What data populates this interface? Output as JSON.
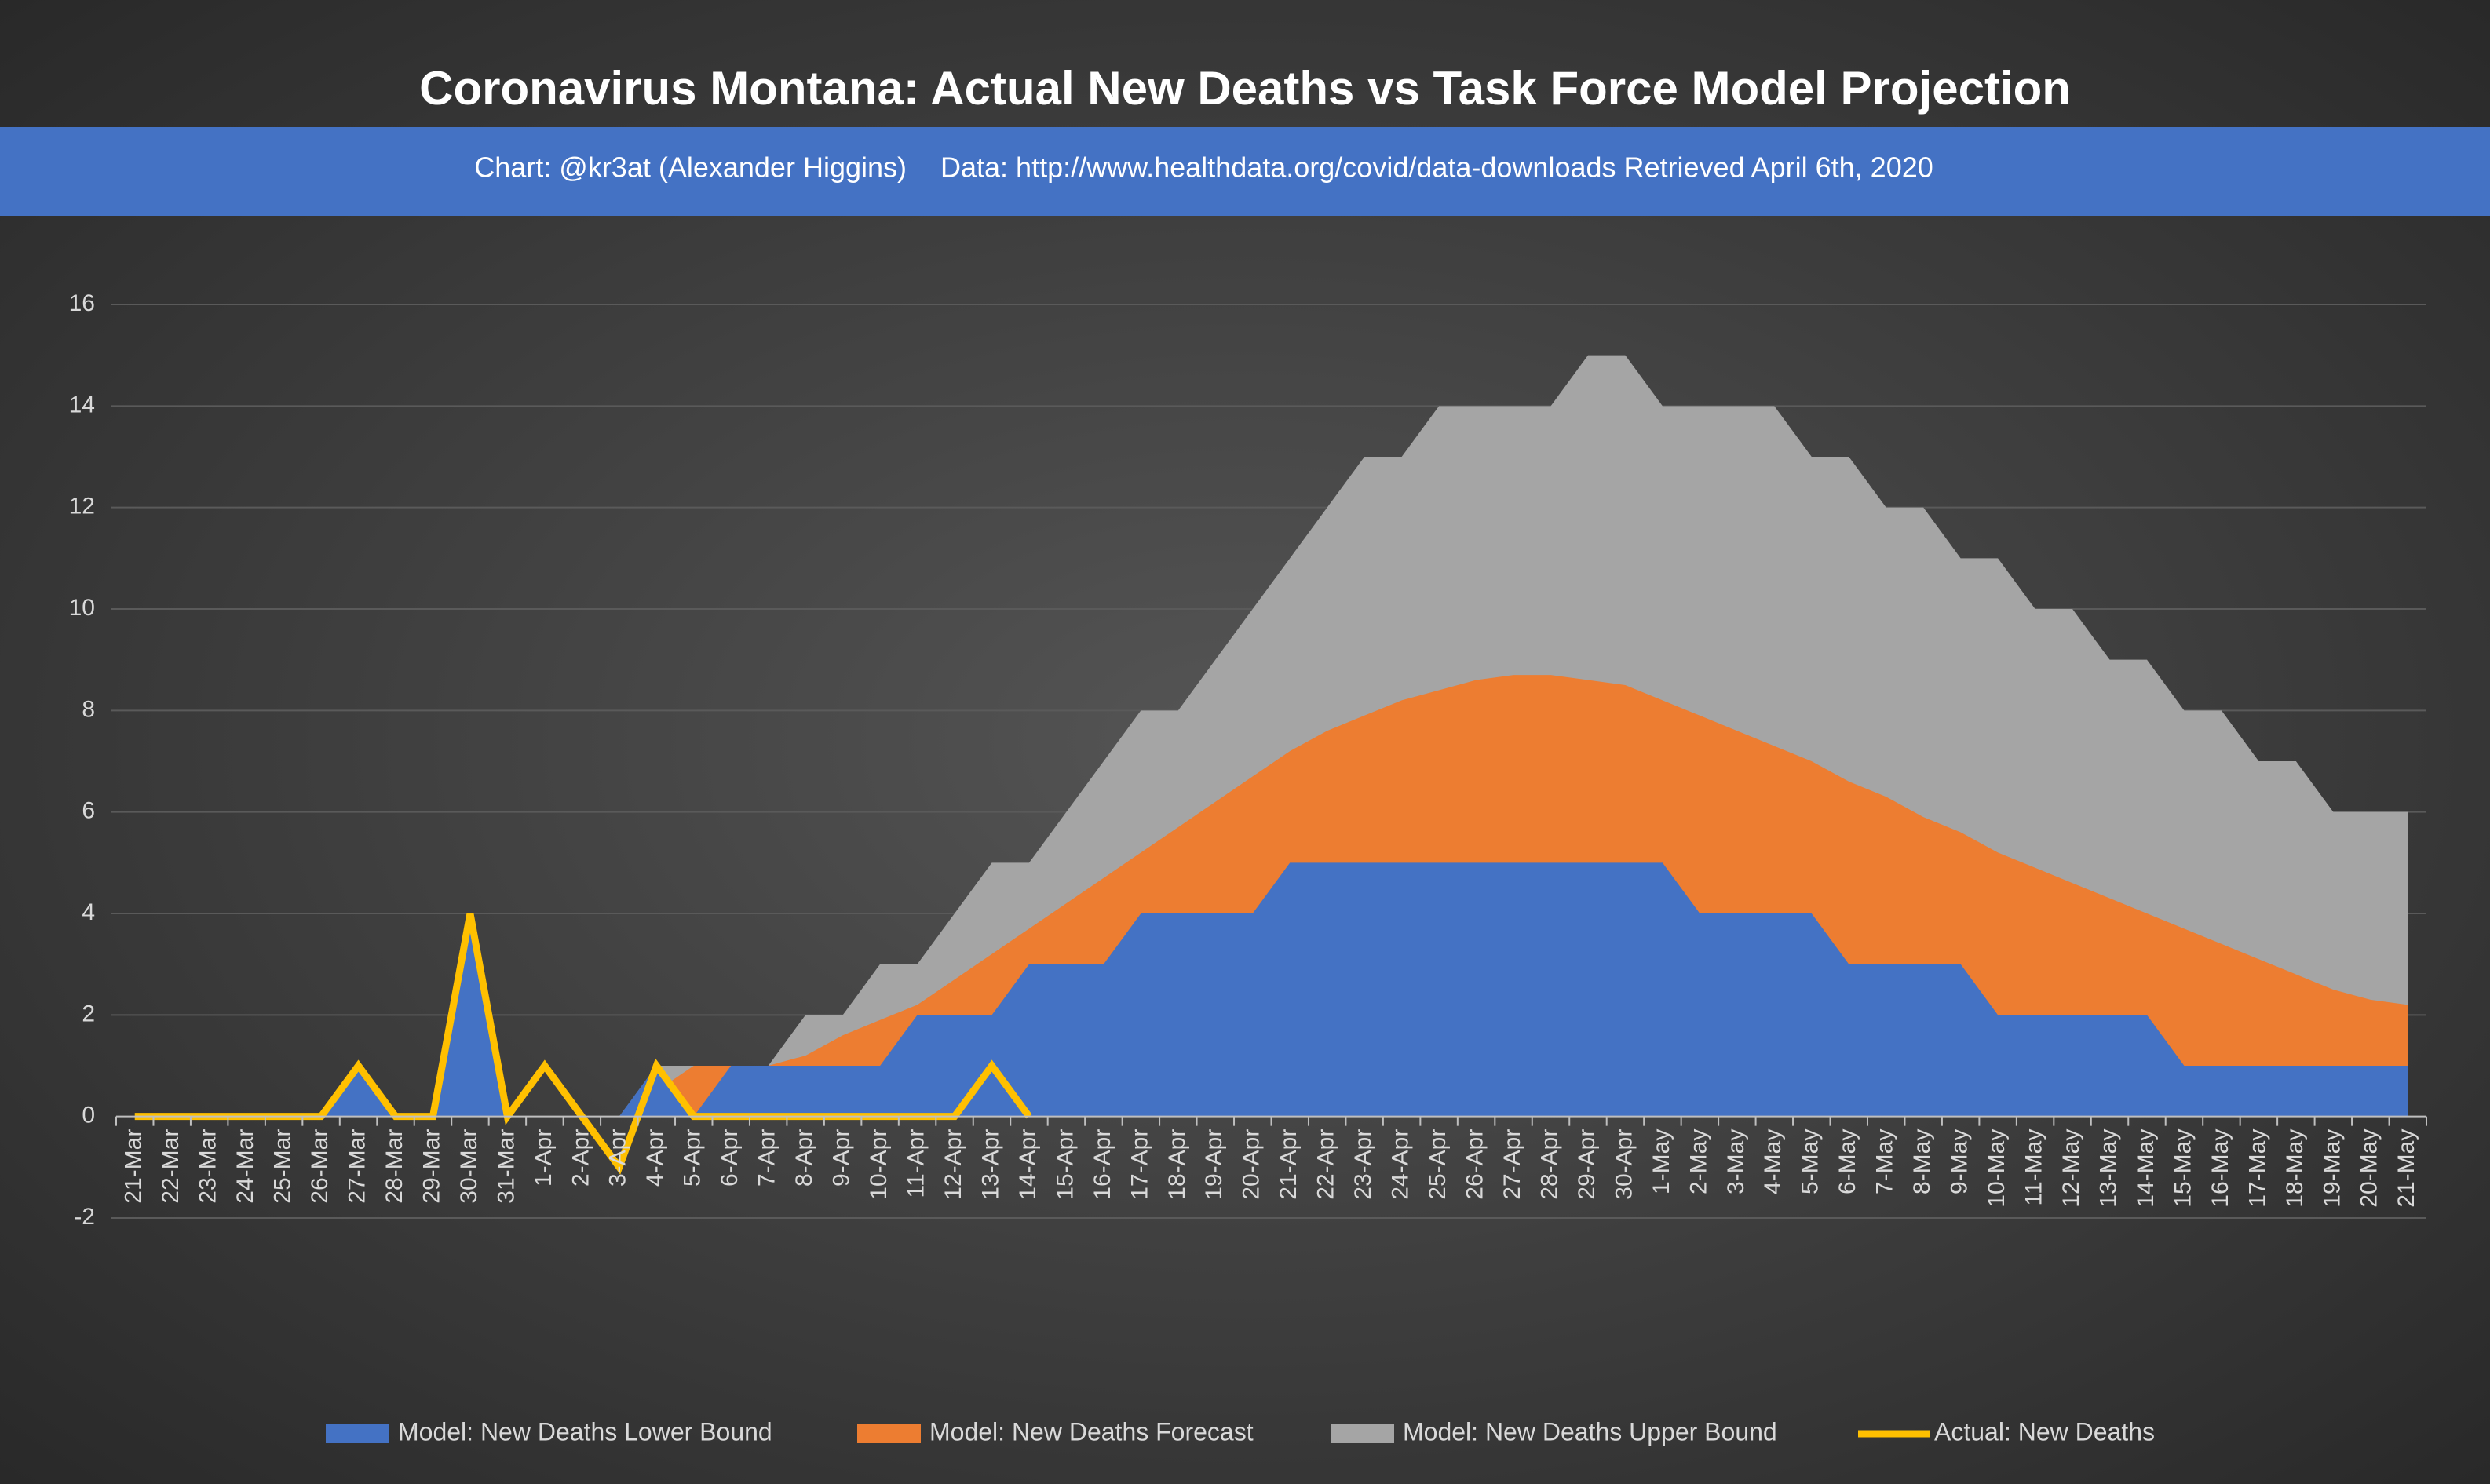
{
  "chart_data": {
    "type": "area",
    "title": "Coronavirus Montana: Actual New Deaths vs Task Force Model Projection",
    "subtitle": "Chart: @kr3at (Alexander Higgins)",
    "source": "Data: http://www.healthdata.org/covid/data-downloads Retrieved April 6th, 2020",
    "categories": [
      "21-Mar",
      "22-Mar",
      "23-Mar",
      "24-Mar",
      "25-Mar",
      "26-Mar",
      "27-Mar",
      "28-Mar",
      "29-Mar",
      "30-Mar",
      "31-Mar",
      "1-Apr",
      "2-Apr",
      "3-Apr",
      "4-Apr",
      "5-Apr",
      "6-Apr",
      "7-Apr",
      "8-Apr",
      "9-Apr",
      "10-Apr",
      "11-Apr",
      "12-Apr",
      "13-Apr",
      "14-Apr",
      "15-Apr",
      "16-Apr",
      "17-Apr",
      "18-Apr",
      "19-Apr",
      "20-Apr",
      "21-Apr",
      "22-Apr",
      "23-Apr",
      "24-Apr",
      "25-Apr",
      "26-Apr",
      "27-Apr",
      "28-Apr",
      "29-Apr",
      "30-Apr",
      "1-May",
      "2-May",
      "3-May",
      "4-May",
      "5-May",
      "6-May",
      "7-May",
      "8-May",
      "9-May",
      "10-May",
      "11-May",
      "12-May",
      "13-May",
      "14-May",
      "15-May",
      "16-May",
      "17-May",
      "18-May",
      "19-May",
      "20-May",
      "21-May"
    ],
    "series": [
      {
        "name": "Model: New Deaths Lower Bound",
        "color": "#4472c4",
        "kind": "area",
        "values": [
          0,
          0,
          0,
          0,
          0,
          0,
          1,
          0,
          0,
          4,
          0,
          0,
          0,
          0,
          1,
          0,
          1,
          1,
          1,
          1,
          1,
          2,
          2,
          2,
          3,
          3,
          3,
          4,
          4,
          4,
          4,
          5,
          5,
          5,
          5,
          5,
          5,
          5,
          5,
          5,
          5,
          5,
          4,
          4,
          4,
          4,
          3,
          3,
          3,
          3,
          2,
          2,
          2,
          2,
          2,
          1,
          1,
          1,
          1,
          1,
          1,
          1
        ]
      },
      {
        "name": "Model: New Deaths Forecast",
        "color": "#ed7d31",
        "kind": "area",
        "values": [
          null,
          null,
          null,
          null,
          null,
          null,
          null,
          null,
          null,
          null,
          null,
          null,
          null,
          0,
          0.5,
          1,
          1,
          1,
          1.2,
          1.6,
          1.9,
          2.2,
          2.7,
          3.2,
          3.7,
          4.2,
          4.7,
          5.2,
          5.7,
          6.2,
          6.7,
          7.2,
          7.6,
          7.9,
          8.2,
          8.4,
          8.6,
          8.7,
          8.7,
          8.6,
          8.5,
          8.2,
          7.9,
          7.6,
          7.3,
          7.0,
          6.6,
          6.3,
          5.9,
          5.6,
          5.2,
          4.9,
          4.6,
          4.3,
          4.0,
          3.7,
          3.4,
          3.1,
          2.8,
          2.5,
          2.3,
          2.2
        ]
      },
      {
        "name": "Model: New Deaths Upper Bound",
        "color": "#a5a5a5",
        "kind": "area",
        "values": [
          null,
          null,
          null,
          null,
          null,
          null,
          null,
          null,
          null,
          null,
          null,
          null,
          null,
          0,
          1,
          1,
          1,
          1,
          2,
          2,
          3,
          3,
          4,
          5,
          5,
          6,
          7,
          8,
          8,
          9,
          10,
          11,
          12,
          13,
          13,
          14,
          14,
          14,
          14,
          15,
          15,
          14,
          14,
          14,
          14,
          13,
          13,
          12,
          12,
          11,
          11,
          10,
          10,
          9,
          9,
          8,
          8,
          7,
          7,
          6,
          6,
          6
        ]
      },
      {
        "name": "Actual: New Deaths",
        "color": "#ffc000",
        "kind": "line",
        "values": [
          0,
          0,
          0,
          0,
          0,
          0,
          1,
          0,
          0,
          4,
          0,
          1,
          0,
          -1,
          1,
          0,
          0,
          0,
          0,
          0,
          0,
          0,
          0,
          1,
          0,
          null,
          null,
          null,
          null,
          null,
          null,
          null,
          null,
          null,
          null,
          null,
          null,
          null,
          null,
          null,
          null,
          null,
          null,
          null,
          null,
          null,
          null,
          null,
          null,
          null,
          null,
          null,
          null,
          null,
          null,
          null,
          null,
          null,
          null,
          null,
          null,
          null
        ]
      }
    ],
    "ylim": [
      -2,
      16
    ],
    "yticks": [
      -2,
      0,
      2,
      4,
      6,
      8,
      10,
      12,
      14,
      16
    ],
    "grid": true,
    "legend": "bottom"
  }
}
